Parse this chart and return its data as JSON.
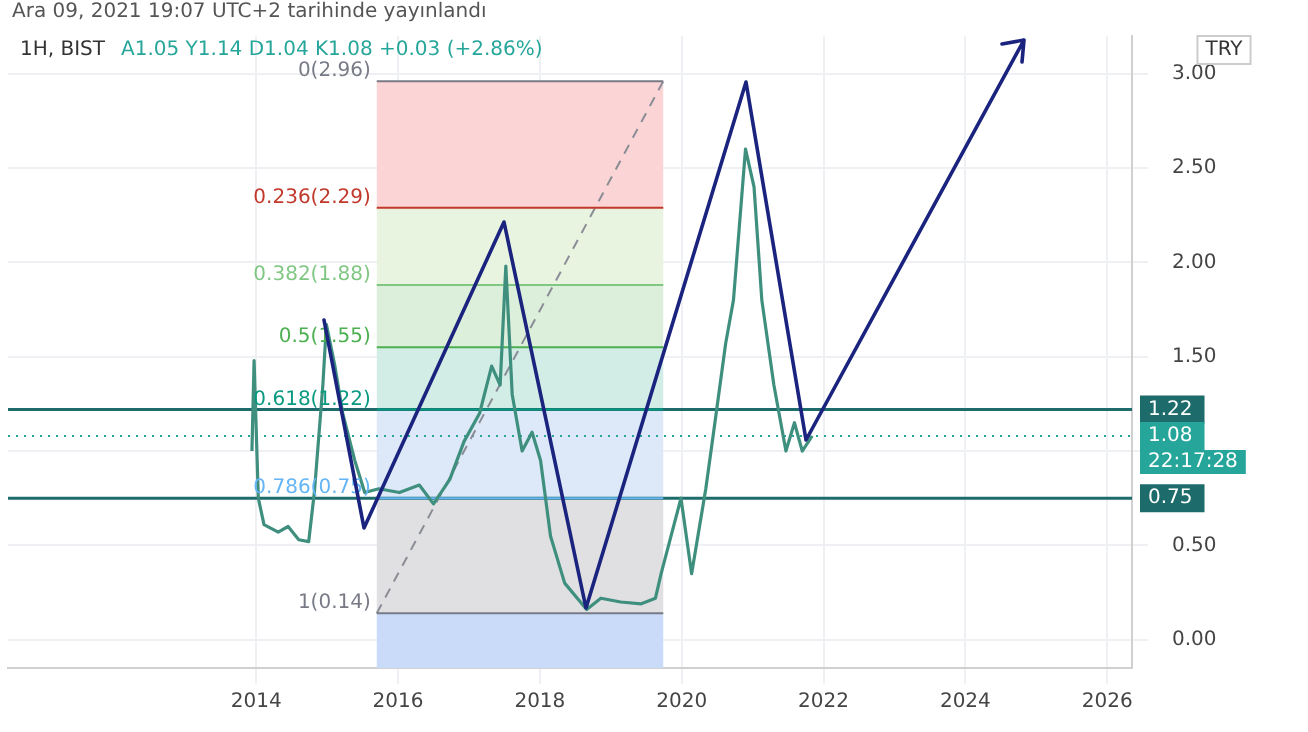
{
  "chart_data": {
    "type": "line",
    "title": "1H, BIST",
    "subtitle": "A1.05 Y1.14 D1.04 K1.08 +0.03 (+2.86%)",
    "ylabel": "TRY",
    "annotations": [
      "Ara 09, 2021 19:07 UTC+2 tarihinde yayınlandı",
      "22:17:28"
    ],
    "xlim": [
      2010.5,
      2026.35
    ],
    "xticks": [
      2014,
      2016,
      2018,
      2020,
      2022,
      2024,
      2026
    ],
    "ylim": [
      -0.15,
      3.2
    ],
    "yticks": [
      {
        "value": 0,
        "label": "0.00"
      },
      {
        "value": 0.5,
        "label": "0.50"
      },
      {
        "value": 1,
        "label": null
      },
      {
        "value": 1.5,
        "label": "1.50"
      },
      {
        "value": 2,
        "label": "2.00"
      },
      {
        "value": 2.5,
        "label": "2.50"
      },
      {
        "value": 3,
        "label": "3.00"
      }
    ],
    "grid": true,
    "legend": false,
    "marker": "none",
    "series": [
      {
        "color": "#3f8f7f",
        "x": [
          2013.94,
          2013.97,
          2014.03,
          2014.11,
          2014.31,
          2014.45,
          2014.6,
          2014.74,
          2014.82,
          2014.94,
          2014.99,
          2015.11,
          2015.22,
          2015.39,
          2015.53,
          2015.73,
          2016.02,
          2016.3,
          2016.5,
          2016.73,
          2016.93,
          2017.15,
          2017.32,
          2017.44,
          2017.52,
          2017.61,
          2017.75,
          2017.89,
          2018.01,
          2018.15,
          2018.35,
          2018.66,
          2018.86,
          2019.14,
          2019.43,
          2019.63,
          2019.71,
          2019.99,
          2020.14,
          2020.34,
          2020.45,
          2020.62,
          2020.73,
          2020.9,
          2021.02,
          2021.13,
          2021.3,
          2021.47,
          2021.59,
          2021.7,
          2021.84
        ],
        "values": [
          1.0,
          1.48,
          0.75,
          0.61,
          0.57,
          0.6,
          0.53,
          0.52,
          0.78,
          1.35,
          1.67,
          1.45,
          1.2,
          0.95,
          0.78,
          0.8,
          0.78,
          0.82,
          0.72,
          0.85,
          1.05,
          1.2,
          1.45,
          1.35,
          1.98,
          1.3,
          1.0,
          1.1,
          0.95,
          0.55,
          0.3,
          0.16,
          0.22,
          0.2,
          0.19,
          0.22,
          0.35,
          0.75,
          0.35,
          0.8,
          1.1,
          1.57,
          1.8,
          2.6,
          2.4,
          1.8,
          1.35,
          1.0,
          1.15,
          1.0,
          1.08
        ]
      },
      {
        "name": "0(2.96)",
        "color": "#787b86",
        "x": [
          2015.7,
          2019.74
        ],
        "values": [
          2.96,
          2.96
        ]
      },
      {
        "name": "0.236(2.29)",
        "color": "#c0392b",
        "x": [
          2015.7,
          2019.74
        ],
        "values": [
          2.29,
          2.29
        ]
      },
      {
        "name": "0.382(1.88)",
        "color": "#81c784",
        "x": [
          2015.7,
          2019.74
        ],
        "values": [
          1.88,
          1.88
        ]
      },
      {
        "name": "0.5(1.55)",
        "color": "#4caf50",
        "x": [
          2015.7,
          2019.74
        ],
        "values": [
          1.55,
          1.55
        ]
      },
      {
        "name": "0.618(1.22)",
        "color": "#089981",
        "x": [
          2015.7,
          2019.74
        ],
        "values": [
          1.22,
          1.22
        ]
      },
      {
        "name": "0.786(0.75)",
        "color": "#64b5f6",
        "x": [
          2015.7,
          2019.74
        ],
        "values": [
          0.75,
          0.75
        ]
      },
      {
        "name": "1(0.14)",
        "color": "#787b86",
        "x": [
          2015.7,
          2019.74
        ],
        "values": [
          0.14,
          0.14
        ]
      },
      {
        "color": "#8a8d96",
        "line_style": "dashed",
        "x": [
          2015.7,
          2019.74
        ],
        "values": [
          0.14,
          2.96
        ]
      }
    ],
    "bands": [
      {
        "axis": "y",
        "from": 2.29,
        "to": 2.96,
        "color": "#fbd5d5"
      },
      {
        "axis": "y",
        "from": 1.88,
        "to": 2.29,
        "color": "#e8f4e0"
      },
      {
        "axis": "y",
        "from": 1.55,
        "to": 1.88,
        "color": "#dcefda"
      },
      {
        "axis": "y",
        "from": 1.22,
        "to": 1.55,
        "color": "#d2ece6"
      },
      {
        "axis": "y",
        "from": 0.75,
        "to": 1.22,
        "color": "#dde9f8"
      },
      {
        "axis": "y",
        "from": 0.14,
        "to": 0.75,
        "color": "#e0e0e2"
      },
      {
        "axis": "y",
        "from": -0.15,
        "to": 0.14,
        "color": "#c9dbf8"
      }
    ],
    "ref_lines": [
      {
        "axis": "y",
        "value": 1.22,
        "label": "1.22",
        "color": "#1e6b6b"
      },
      {
        "axis": "y",
        "value": 0.75,
        "label": "0.75",
        "color": "#1e6b6b"
      },
      {
        "axis": "y",
        "value": 1.08,
        "label": "1.08",
        "color": "#26a69a",
        "line_style": "dotted"
      }
    ]
  }
}
